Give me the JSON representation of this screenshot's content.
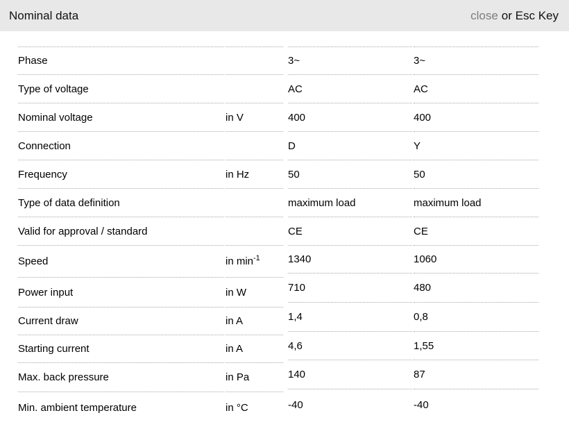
{
  "header": {
    "title": "Nominal data",
    "close_label": "close",
    "esc_label": "or Esc Key"
  },
  "colors": {
    "titlebar_bg": "#e8e8e8",
    "close_link": "#7d7d7d",
    "row_border": "#a6a6a6",
    "text": "#000000"
  },
  "rows": [
    {
      "label": "Phase",
      "unit": "",
      "v1": "3~",
      "v2": "3~"
    },
    {
      "label": "Type of voltage",
      "unit": "",
      "v1": "AC",
      "v2": "AC"
    },
    {
      "label": "Nominal voltage",
      "unit": "in V",
      "v1": "400",
      "v2": "400"
    },
    {
      "label": "Connection",
      "unit": "",
      "v1": "D",
      "v2": "Y"
    },
    {
      "label": "Frequency",
      "unit": "in Hz",
      "v1": "50",
      "v2": "50"
    },
    {
      "label": "Type of data definition",
      "unit": "",
      "v1": "maximum load",
      "v2": "maximum load"
    },
    {
      "label": "Valid for approval / standard",
      "unit": "",
      "v1": "CE",
      "v2": "CE"
    },
    {
      "label": "Speed",
      "unit": "in min",
      "unit_sup": "-1",
      "v1": "1340",
      "v2": "1060"
    },
    {
      "label": "Power input",
      "unit": "in W",
      "v1": "710",
      "v2": "480"
    },
    {
      "label": "Current draw",
      "unit": "in A",
      "v1": "1,4",
      "v2": "0,8"
    },
    {
      "label": "Starting current",
      "unit": "in A",
      "v1": "4,6",
      "v2": "1,55"
    },
    {
      "label": "Max. back pressure",
      "unit": "in Pa",
      "v1": "140",
      "v2": "87"
    },
    {
      "label": "Min. ambient temperature",
      "unit": "in °C",
      "v1": "-40",
      "v2": "-40"
    }
  ]
}
